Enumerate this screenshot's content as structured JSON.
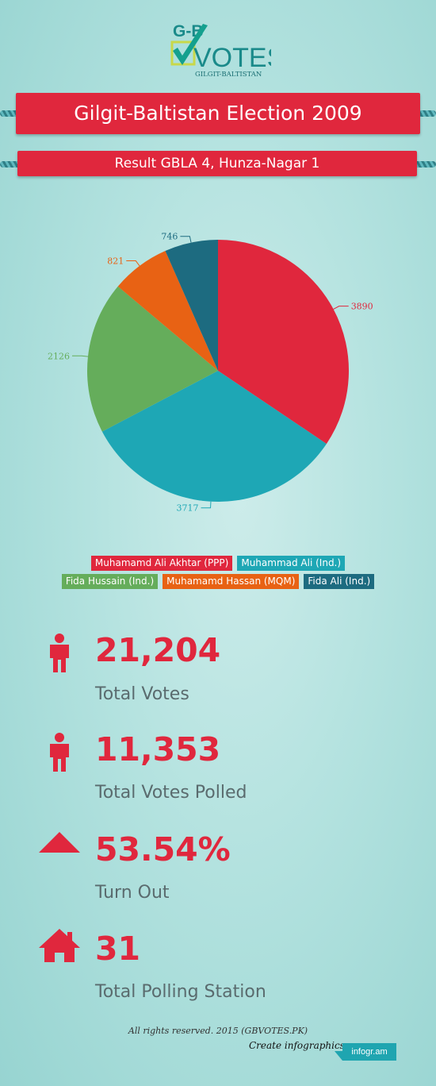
{
  "logo": {
    "top_text": "G-B",
    "main_text": "VOTES",
    "sub_text": "GILGIT-BALTISTAN"
  },
  "header": {
    "title": "Gilgit-Baltistan Election 2009",
    "subtitle": "Result GBLA 4, Hunza-Nagar 1"
  },
  "colors": {
    "red": "#e0273d",
    "teal": "#1ea7b5",
    "green": "#65ad5b",
    "orange": "#e86214",
    "darkteal": "#1d6b80"
  },
  "chart_data": {
    "type": "pie",
    "slices": [
      {
        "label": "Muhamamd Ali Akhtar (PPP)",
        "value": 3890,
        "color": "#e0273d"
      },
      {
        "label": "Muhammad Ali (Ind.)",
        "value": 3717,
        "color": "#1ea7b5"
      },
      {
        "label": "Fida Hussain (Ind.)",
        "value": 2126,
        "color": "#65ad5b"
      },
      {
        "label": "Muhamamd Hassan (MQM)",
        "value": 821,
        "color": "#e86214"
      },
      {
        "label": "Fida Ali (Ind.)",
        "value": 746,
        "color": "#1d6b80"
      }
    ],
    "legend_position": "bottom"
  },
  "legend": {
    "row1": [
      "Muhamamd Ali Akhtar (PPP)",
      "Muhammad Ali (Ind.)"
    ],
    "row2": [
      "Fida Hussain (Ind.)",
      "Muhamamd Hassan (MQM)",
      "Fida Ali (Ind.)"
    ]
  },
  "stats": [
    {
      "value": "21,204",
      "label": "Total Votes",
      "icon": "person-icon"
    },
    {
      "value": "11,353",
      "label": "Total Votes Polled",
      "icon": "person-icon"
    },
    {
      "value": "53.54%",
      "label": "Turn Out",
      "icon": "triangle-up-icon"
    },
    {
      "value": "31",
      "label": "Total Polling Station",
      "icon": "house-icon"
    }
  ],
  "footer": {
    "copyright": "All rights reserved. 2015 (GBVOTES.PK)",
    "create_text": "Create infographics",
    "badge": "infogr.am"
  }
}
